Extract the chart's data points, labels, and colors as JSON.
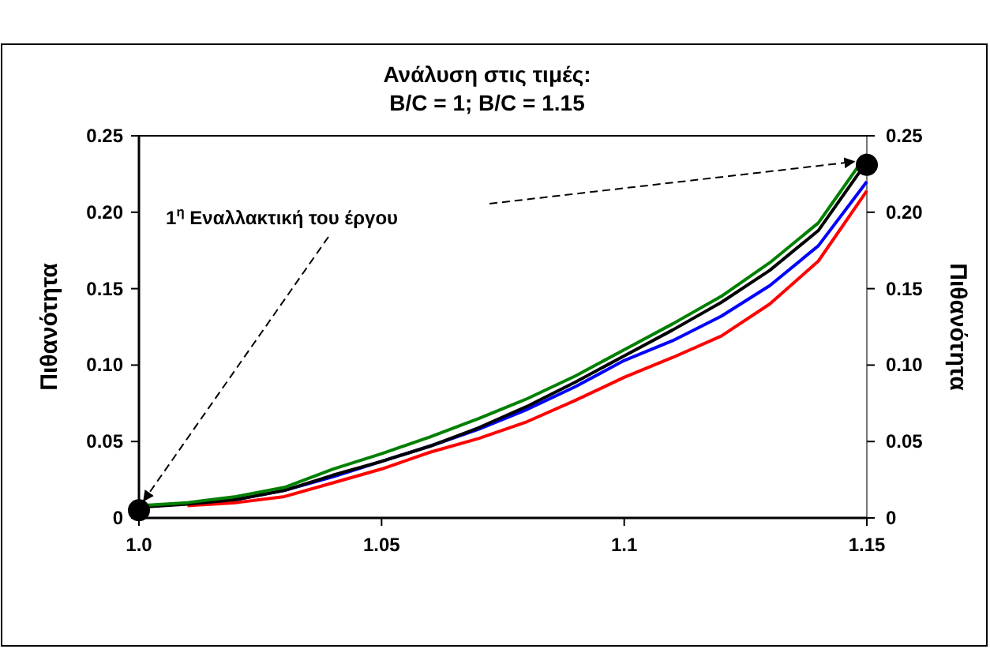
{
  "chart_data": {
    "type": "line",
    "title": "Ανάλυση στις τιμές:\nB/C = 1; B/C = 1.15",
    "ylabel": "Πιθανότητα",
    "y2label": "Πιθανότητα",
    "annotations": [
      "1$^{η}$ Εναλλακτική του έργου"
    ],
    "x": [
      1.0,
      1.01,
      1.02,
      1.03,
      1.04,
      1.05,
      1.06,
      1.07,
      1.08,
      1.09,
      1.1,
      1.11,
      1.12,
      1.13,
      1.14,
      1.15
    ],
    "series": [
      {
        "color": "#ff0000",
        "values": [
          null,
          0.008,
          0.01,
          0.014,
          0.023,
          0.032,
          0.043,
          0.052,
          0.063,
          0.077,
          0.092,
          0.105,
          0.119,
          0.14,
          0.168,
          0.214
        ]
      },
      {
        "color": "#0000ff",
        "values": [
          null,
          null,
          0.012,
          0.018,
          0.027,
          0.037,
          0.047,
          0.058,
          0.071,
          0.086,
          0.103,
          0.116,
          0.132,
          0.152,
          0.178,
          0.22
        ]
      },
      {
        "color": "#000000",
        "values": [
          0.007,
          0.009,
          0.012,
          0.018,
          0.028,
          0.037,
          0.047,
          0.059,
          0.073,
          0.089,
          0.106,
          0.123,
          0.141,
          0.162,
          0.188,
          0.233
        ]
      },
      {
        "color": "#008000",
        "values": [
          0.008,
          0.01,
          0.014,
          0.02,
          0.032,
          0.042,
          0.053,
          0.065,
          0.078,
          0.093,
          0.11,
          0.127,
          0.145,
          0.167,
          0.193,
          0.238
        ]
      },
      {
        "type": "scatter",
        "color": "#000000",
        "marker": "circle",
        "x": [
          1.0,
          1.15
        ],
        "values": [
          0.005,
          0.231
        ]
      }
    ],
    "xlim": [
      1.0,
      1.15
    ],
    "xticks": [
      {
        "value": 1.0,
        "label": "1.0"
      },
      1.05,
      1.1,
      1.15
    ],
    "ylim": [
      0,
      0.25
    ],
    "yticks": [
      0,
      0.05,
      {
        "value": 0.1,
        "label": "0.10"
      },
      0.15,
      {
        "value": 0.2,
        "label": "0.20"
      },
      0.25
    ],
    "y2lim": [
      0,
      0.25
    ],
    "y2ticks": [
      0,
      0.05,
      {
        "value": 0.1,
        "label": "0.10"
      },
      0.15,
      {
        "value": 0.2,
        "label": "0.20"
      },
      0.25
    ],
    "grid": false,
    "line_style": "solid"
  }
}
